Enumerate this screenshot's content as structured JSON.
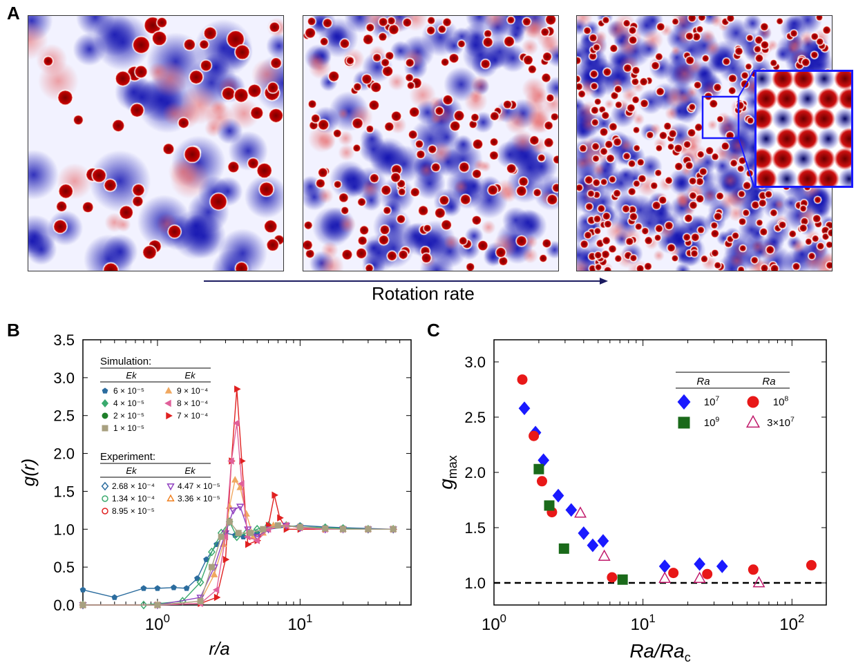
{
  "panels": {
    "a": "A",
    "b": "B",
    "c": "C"
  },
  "panel_a": {
    "arrow_label": "Rotation rate",
    "field_images": [
      "convection-field-low-rotation",
      "convection-field-mid-rotation",
      "convection-field-high-rotation"
    ],
    "colors": {
      "positive": "#cc0000",
      "negative": "#1010b0",
      "neutral": "#ffffff",
      "inset_border": "#1a1aff"
    }
  },
  "chart_data": [
    {
      "type": "line",
      "panel": "B",
      "xlabel_italic": "r/a",
      "ylabel_italic": "g(r)",
      "xscale": "log",
      "xlim": [
        0.3,
        60
      ],
      "ylim": [
        0,
        3.5
      ],
      "yticks": [
        "0.0",
        "0.5",
        "1.0",
        "1.5",
        "2.0",
        "2.5",
        "3.0",
        "3.5"
      ],
      "xticks": [
        {
          "base": "10",
          "exp": "0"
        },
        {
          "base": "10",
          "exp": "1"
        }
      ],
      "legend_placement": "top-left",
      "legend_simulation": {
        "title": "Simulation:",
        "col_header": "Ek",
        "entries": [
          {
            "label": "6 × 10⁻⁵",
            "color": "#2b6c9e",
            "marker": "pentagon"
          },
          {
            "label": "4 × 10⁻⁵",
            "color": "#3aaa6e",
            "marker": "diamond"
          },
          {
            "label": "2 × 10⁻⁵",
            "color": "#1f7f2a",
            "marker": "circle"
          },
          {
            "label": "1 × 10⁻⁵",
            "color": "#a8a080",
            "marker": "square"
          },
          {
            "label": "9 × 10⁻⁴",
            "color": "#f0a860",
            "marker": "triangle-up"
          },
          {
            "label": "8 × 10⁻⁴",
            "color": "#e0609a",
            "marker": "triangle-left"
          },
          {
            "label": "7 × 10⁻⁴",
            "color": "#e02020",
            "marker": "triangle-right"
          }
        ]
      },
      "legend_experiment": {
        "title": "Experiment:",
        "col_header": "Ek",
        "entries": [
          {
            "label": "2.68 × 10⁻⁴",
            "color": "#2b6c9e",
            "marker": "diamond-open"
          },
          {
            "label": "1.34 × 10⁻⁴",
            "color": "#3aaa6e",
            "marker": "circle-open"
          },
          {
            "label": "8.95 × 10⁻⁵",
            "color": "#e02020",
            "marker": "circle-open"
          },
          {
            "label": "4.47 × 10⁻⁵",
            "color": "#9040c0",
            "marker": "triangle-down-open"
          },
          {
            "label": "3.36 × 10⁻⁵",
            "color": "#f08020",
            "marker": "triangle-up-open"
          }
        ]
      },
      "series": [
        {
          "color": "#2b6c9e",
          "x": [
            0.3,
            0.5,
            0.8,
            1.0,
            1.3,
            1.6,
            1.9,
            2.2,
            2.6,
            3.0,
            3.5,
            4.0,
            5,
            6,
            8,
            10,
            15,
            20,
            30,
            45
          ],
          "y": [
            0.2,
            0.1,
            0.22,
            0.22,
            0.23,
            0.22,
            0.35,
            0.6,
            0.8,
            0.95,
            0.92,
            0.9,
            0.95,
            1.0,
            1.03,
            1.05,
            1.03,
            1.02,
            1.01,
            1.0
          ]
        },
        {
          "color": "#3aaa6e",
          "x": [
            0.3,
            0.8,
            1.5,
            2.0,
            2.4,
            2.8,
            3.2,
            3.6,
            4.2,
            5,
            6,
            8,
            10,
            15,
            20,
            30,
            45
          ],
          "y": [
            0.0,
            0.0,
            0.05,
            0.3,
            0.7,
            0.95,
            1.1,
            0.9,
            0.95,
            1.0,
            1.05,
            1.05,
            1.03,
            1.02,
            1.01,
            1.0,
            1.0
          ]
        },
        {
          "color": "#e02020",
          "x": [
            0.3,
            1.0,
            2.0,
            2.6,
            3.0,
            3.3,
            3.6,
            3.9,
            4.3,
            5,
            6,
            6.6,
            7.2,
            8,
            10,
            15,
            20,
            30,
            45
          ],
          "y": [
            0.0,
            0.0,
            0.02,
            0.1,
            0.6,
            1.9,
            2.85,
            1.9,
            0.8,
            0.85,
            1.05,
            1.45,
            1.15,
            1.0,
            1.0,
            1.0,
            1.0,
            1.0,
            1.0
          ]
        },
        {
          "color": "#f0a860",
          "x": [
            0.3,
            1.0,
            2.0,
            2.5,
            2.9,
            3.2,
            3.5,
            3.8,
            4.2,
            4.7,
            5.5,
            6.5,
            8,
            10,
            15,
            20,
            30,
            45
          ],
          "y": [
            0.0,
            0.0,
            0.05,
            0.4,
            0.8,
            1.3,
            1.65,
            1.55,
            1.2,
            0.9,
            0.95,
            1.05,
            1.05,
            1.02,
            1.0,
            1.0,
            1.0,
            1.0
          ]
        },
        {
          "color": "#9040c0",
          "x": [
            0.3,
            1.0,
            2.0,
            2.5,
            3.0,
            3.4,
            3.8,
            4.3,
            5,
            6,
            8,
            10,
            15,
            20,
            30,
            45
          ],
          "y": [
            0.0,
            0.0,
            0.1,
            0.5,
            0.95,
            1.25,
            1.3,
            1.0,
            0.9,
            1.0,
            1.05,
            1.02,
            1.0,
            1.0,
            1.0,
            1.0
          ]
        },
        {
          "color": "#e0609a",
          "x": [
            0.3,
            1.0,
            2.0,
            2.6,
            3.0,
            3.3,
            3.6,
            3.9,
            4.3,
            5,
            6,
            8,
            10,
            15,
            20,
            30,
            45
          ],
          "y": [
            0.0,
            0.0,
            0.02,
            0.2,
            0.9,
            1.9,
            2.4,
            1.6,
            0.9,
            0.85,
            1.0,
            1.05,
            1.02,
            1.0,
            1.0,
            1.0,
            1.0
          ]
        },
        {
          "color": "#a8a080",
          "x": [
            0.3,
            1.0,
            2.0,
            2.4,
            2.8,
            3.2,
            3.7,
            4.5,
            5.5,
            7,
            10,
            15,
            20,
            30,
            45
          ],
          "y": [
            0.0,
            0.0,
            0.05,
            0.5,
            0.9,
            1.1,
            0.95,
            0.95,
            1.0,
            1.05,
            1.03,
            1.01,
            1.0,
            1.0,
            1.0
          ]
        }
      ]
    },
    {
      "type": "scatter",
      "panel": "C",
      "xlabel_italic": "Ra/Ra",
      "xlabel_sub": "c",
      "ylabel_italic": "g",
      "ylabel_sub": "max",
      "xscale": "log",
      "xlim": [
        1,
        170
      ],
      "ylim": [
        0.8,
        3.2
      ],
      "yticks": [
        "1.0",
        "1.5",
        "2.0",
        "2.5",
        "3.0"
      ],
      "xticks": [
        {
          "base": "10",
          "exp": "0"
        },
        {
          "base": "10",
          "exp": "1"
        },
        {
          "base": "10",
          "exp": "2"
        }
      ],
      "reference_line": {
        "y": 1.0,
        "style": "dashed"
      },
      "legend_placement": "top-right",
      "legend_header": "Ra",
      "series": [
        {
          "label_base": "10",
          "label_exp": "7",
          "color": "#1a1aff",
          "marker": "diamond",
          "x": [
            1.6,
            1.9,
            2.15,
            2.7,
            3.3,
            4.0,
            4.6,
            5.4,
            14,
            24,
            34
          ],
          "y": [
            2.58,
            2.36,
            2.11,
            1.79,
            1.66,
            1.45,
            1.34,
            1.38,
            1.15,
            1.17,
            1.15
          ]
        },
        {
          "label_base": "10",
          "label_exp": "8",
          "color": "#e81818",
          "marker": "circle",
          "x": [
            1.55,
            1.85,
            2.1,
            2.45,
            6.2,
            16,
            27,
            55,
            135
          ],
          "y": [
            2.84,
            2.33,
            1.92,
            1.64,
            1.05,
            1.09,
            1.08,
            1.12,
            1.16
          ]
        },
        {
          "label_base": "10",
          "label_exp": "9",
          "color": "#1a6a1a",
          "marker": "square",
          "x": [
            2.0,
            2.35,
            2.95,
            7.3
          ],
          "y": [
            2.03,
            1.7,
            1.31,
            1.03
          ]
        },
        {
          "label_base": "3×10",
          "label_exp": "7",
          "color": "#c0186a",
          "marker": "triangle-open",
          "x": [
            3.8,
            5.5,
            14,
            24,
            60
          ],
          "y": [
            1.63,
            1.24,
            1.04,
            1.04,
            1.0
          ]
        }
      ]
    }
  ]
}
